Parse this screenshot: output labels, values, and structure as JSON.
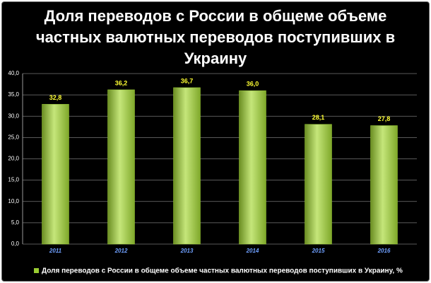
{
  "chart_data": {
    "type": "bar",
    "title": "Доля переводов с России в общеме объеме частных валютных переводов поступивших в Украину",
    "categories": [
      "2011",
      "2012",
      "2013",
      "2014",
      "2015",
      "2016"
    ],
    "series": [
      {
        "name": "Доля переводов с России в общеме объеме частных валютных переводов поступивших в Украину, %",
        "color": "#9acd32",
        "values": [
          32.8,
          36.2,
          36.7,
          36.0,
          28.1,
          27.8
        ],
        "value_labels": [
          "32,8",
          "36,2",
          "36,7",
          "36,0",
          "28,1",
          "27,8"
        ]
      }
    ],
    "ylim": [
      0,
      40
    ],
    "yticks": [
      {
        "value": 0,
        "label": "0,0"
      },
      {
        "value": 5,
        "label": "5,0"
      },
      {
        "value": 10,
        "label": "10,0"
      },
      {
        "value": 15,
        "label": "15,0"
      },
      {
        "value": 20,
        "label": "20,0"
      },
      {
        "value": 25,
        "label": "25,0"
      },
      {
        "value": 30,
        "label": "30,0"
      },
      {
        "value": 35,
        "label": "35,0"
      },
      {
        "value": 40,
        "label": "40,0"
      }
    ],
    "grid": true
  }
}
